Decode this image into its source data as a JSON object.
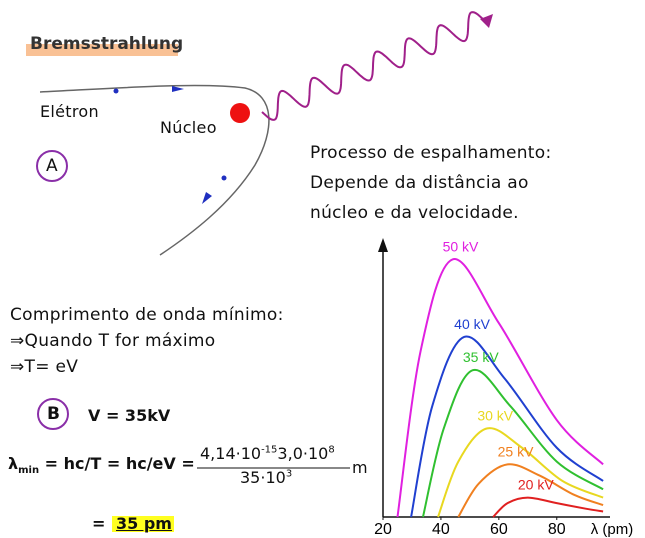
{
  "header": {
    "title": "Bremsstrahlung"
  },
  "diagram": {
    "electron": "Elétron",
    "nucleus": "Núcleo",
    "marker": "A"
  },
  "scattering": {
    "lines": [
      "Processo de espalhamento:",
      "Depende da distância ao",
      "núcleo e da velocidade."
    ]
  },
  "minimum": {
    "lines": [
      "Comprimento de onda mínimo:",
      "⇒Quando T for máximo",
      "⇒T= eV"
    ],
    "marker": "B",
    "voltage": "V = 35kV"
  },
  "formula": {
    "symbol": "λ",
    "subscript": "min",
    "text": "= hc/T = hc/eV =",
    "numerator": [
      "4,14·10",
      "-15",
      "3,0·10",
      "8"
    ],
    "denominator": [
      "35·10",
      "3"
    ],
    "unit": "m",
    "result_prefix": "=",
    "result": "35 pm"
  },
  "chart_data": {
    "type": "line",
    "xlabel": "λ (pm)",
    "xlim": [
      20,
      97
    ],
    "xticks": [
      20,
      40,
      60,
      80
    ],
    "ylim": [
      0,
      100
    ],
    "series": [
      {
        "name": "50 kV",
        "color": "#e020e0",
        "x": [
          25,
          33,
          44,
          60,
          80,
          96
        ],
        "values": [
          0,
          60,
          93,
          70,
          35,
          19
        ]
      },
      {
        "name": "40 kV",
        "color": "#2040d0",
        "x": [
          29.7,
          37,
          48,
          62,
          80,
          96
        ],
        "values": [
          0,
          40,
          65,
          50,
          25,
          13
        ]
      },
      {
        "name": "35 kV",
        "color": "#30c030",
        "x": [
          33.8,
          41,
          51,
          64,
          80,
          96
        ],
        "values": [
          0,
          32,
          53,
          40,
          20,
          10
        ]
      },
      {
        "name": "30 kV",
        "color": "#e8d820",
        "x": [
          39,
          46,
          56,
          68,
          82,
          96
        ],
        "values": [
          0,
          20,
          32,
          25,
          13,
          7
        ]
      },
      {
        "name": "25 kV",
        "color": "#f08020",
        "x": [
          46,
          53,
          63,
          74,
          86,
          96
        ],
        "values": [
          0,
          12,
          19,
          15,
          8,
          4.3
        ]
      },
      {
        "name": "20 kV",
        "color": "#e02020",
        "x": [
          58,
          63,
          70,
          80,
          90,
          96
        ],
        "values": [
          0,
          5,
          7,
          5,
          3,
          2
        ]
      }
    ]
  }
}
